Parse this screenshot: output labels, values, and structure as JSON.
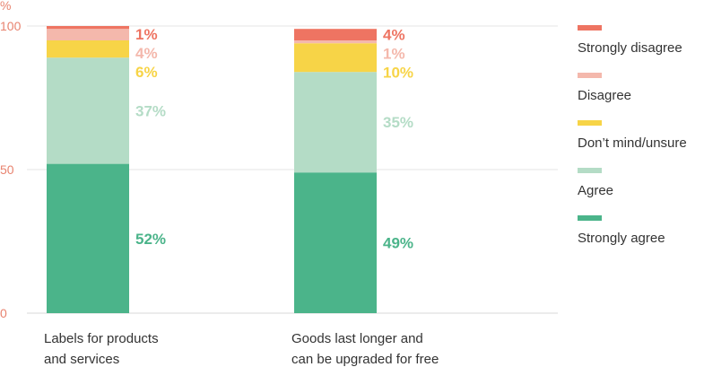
{
  "chart_data": {
    "type": "bar",
    "stacked": true,
    "ylabel": "%",
    "ylim": [
      0,
      100
    ],
    "yticks": [
      "0",
      "50",
      "100"
    ],
    "grid": true,
    "legend_position": "right",
    "categories": [
      [
        "Labels for products",
        "and services"
      ],
      [
        "Goods last longer and",
        "can be upgraded for free"
      ]
    ],
    "series": [
      {
        "name": "Strongly agree",
        "color": "#4bb48a",
        "values": [
          52,
          49
        ],
        "labels": [
          "52%",
          "49%"
        ]
      },
      {
        "name": "Agree",
        "color": "#b4dcc6",
        "values": [
          37,
          35
        ],
        "labels": [
          "37%",
          "35%"
        ]
      },
      {
        "name": "Don’t mind/unsure",
        "color": "#f7d447",
        "values": [
          6,
          10
        ],
        "labels": [
          "6%",
          "10%"
        ]
      },
      {
        "name": "Disagree",
        "color": "#f4b8ac",
        "values": [
          4,
          1
        ],
        "labels": [
          "4%",
          "1%"
        ]
      },
      {
        "name": "Strongly disagree",
        "color": "#ee7462",
        "values": [
          1,
          4
        ],
        "labels": [
          "1%",
          "4%"
        ]
      }
    ],
    "legend_order": [
      "Strongly disagree",
      "Disagree",
      "Don’t mind/unsure",
      "Agree",
      "Strongly agree"
    ],
    "axis_color": "#e8836f"
  }
}
